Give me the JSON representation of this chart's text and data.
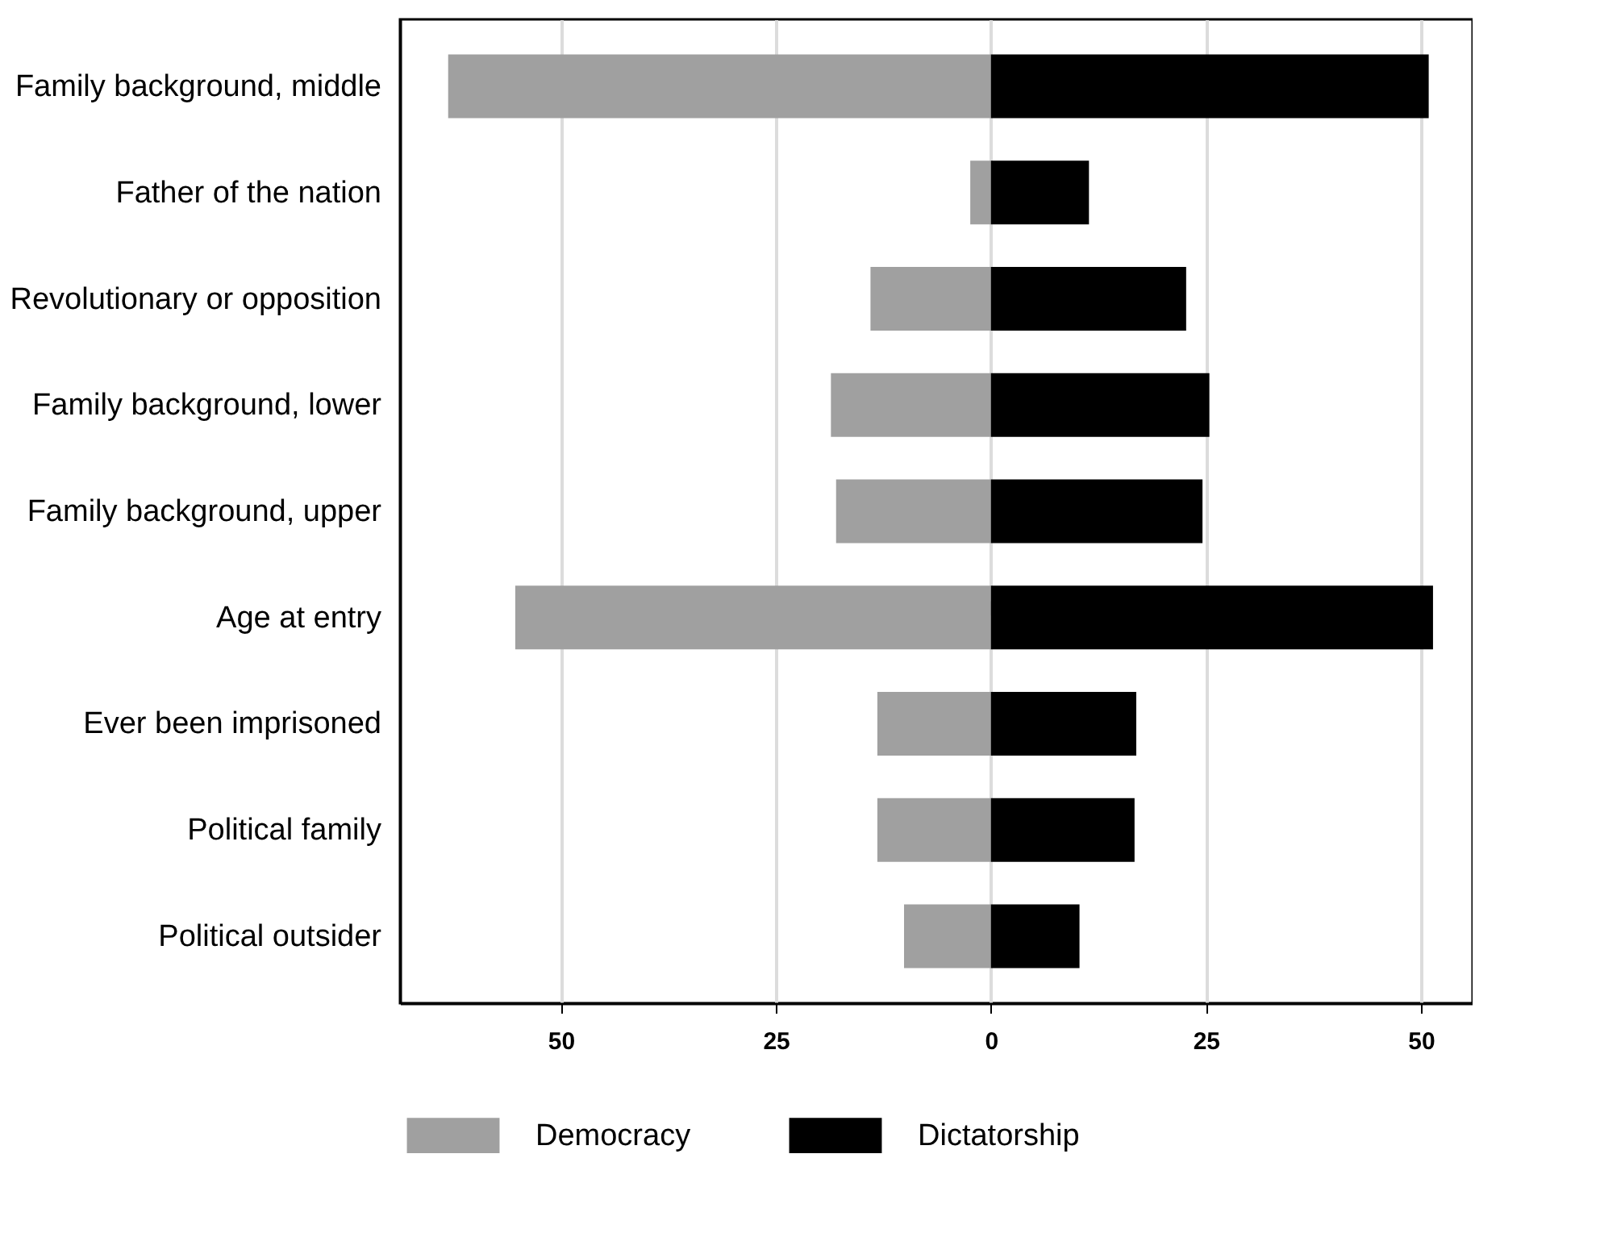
{
  "chart_data": {
    "type": "bar",
    "orientation": "horizontal",
    "categories": [
      "Family background, middle",
      "Father of the nation",
      "Revolutionary or opposition",
      "Family background, lower",
      "Family background, upper",
      "Age at entry",
      "Ever been imprisoned",
      "Political family",
      "Political outsider"
    ],
    "series": [
      {
        "name": "Democracy",
        "color": "#a0a0a0",
        "values": [
          -63.1,
          -2.4,
          -14.0,
          -18.6,
          -18.0,
          -55.3,
          -13.2,
          -13.2,
          -10.1
        ]
      },
      {
        "name": "Dictatorship",
        "color": "#000000",
        "values": [
          50.9,
          11.4,
          22.7,
          25.4,
          24.6,
          51.4,
          16.9,
          16.7,
          10.3
        ]
      }
    ],
    "xlim": [
      -68.7,
      56
    ],
    "xticks": [
      {
        "value": -50,
        "label": "50"
      },
      {
        "value": -25,
        "label": "25"
      },
      0,
      25,
      50
    ],
    "grid": "x",
    "legend": "bottom",
    "stacked": true
  }
}
